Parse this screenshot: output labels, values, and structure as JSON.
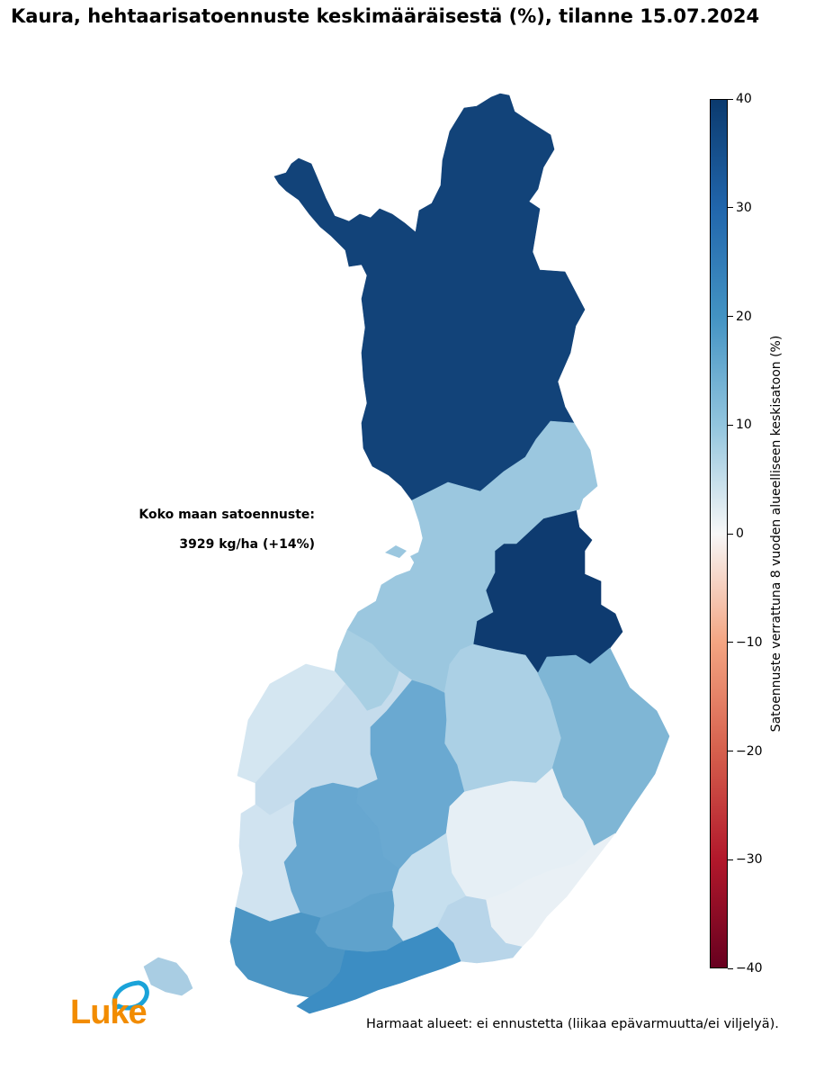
{
  "title": "Kaura, hehtaarisatoennuste keskimääräisestä (%), tilanne 15.07.2024",
  "national_forecast": {
    "label": "Koko maan satoennuste:",
    "value": "3929 kg/ha (+14%)"
  },
  "colorbar": {
    "label": "Satoennuste verrattuna 8 vuoden alueelliseen keskisatoon (%)",
    "ticks": [
      "40",
      "30",
      "20",
      "10",
      "0",
      "−10",
      "−20",
      "−30",
      "−40"
    ],
    "range": [
      -40,
      40
    ],
    "colors": [
      "#0b3a6e",
      "#2166ac",
      "#4393c3",
      "#92c5de",
      "#f7f7f7",
      "#f4a582",
      "#d6604d",
      "#b2182b",
      "#67001f"
    ]
  },
  "footnote": "Harmaat alueet: ei ennustetta (liikaa epävarmuutta/ei viljelyä).",
  "logo": {
    "text": "Luke",
    "icon": "leaf-drop-icon",
    "color": "#f28c00",
    "icon_color": "#1aa3d9"
  },
  "regions": [
    {
      "id": "lapland",
      "color": "#124379"
    },
    {
      "id": "kainuu",
      "color": "#0e3b70"
    },
    {
      "id": "north-ostrobothnia",
      "color": "#9bc7df"
    },
    {
      "id": "central-ostrobothnia",
      "color": "#a8cfe3"
    },
    {
      "id": "ostrobothnia",
      "color": "#d4e6f1"
    },
    {
      "id": "south-ostrobothnia",
      "color": "#c5dcec"
    },
    {
      "id": "north-savo",
      "color": "#abd0e5"
    },
    {
      "id": "north-karelia",
      "color": "#7fb6d5"
    },
    {
      "id": "central-finland",
      "color": "#6aa9d1"
    },
    {
      "id": "satakunta",
      "color": "#d0e3f0"
    },
    {
      "id": "pirkanmaa",
      "color": "#67a7d0"
    },
    {
      "id": "south-savo",
      "color": "#e6eff5"
    },
    {
      "id": "paijat-hame",
      "color": "#c6dfee"
    },
    {
      "id": "south-karelia",
      "color": "#e9f0f5"
    },
    {
      "id": "kanta-hame",
      "color": "#5fa2cc"
    },
    {
      "id": "varsinais-suomi",
      "color": "#4b95c4"
    },
    {
      "id": "kymenlaakso",
      "color": "#b8d5e9"
    },
    {
      "id": "uusimaa",
      "color": "#3c8dc3"
    },
    {
      "id": "aland",
      "color": "#a9cde3"
    }
  ]
}
